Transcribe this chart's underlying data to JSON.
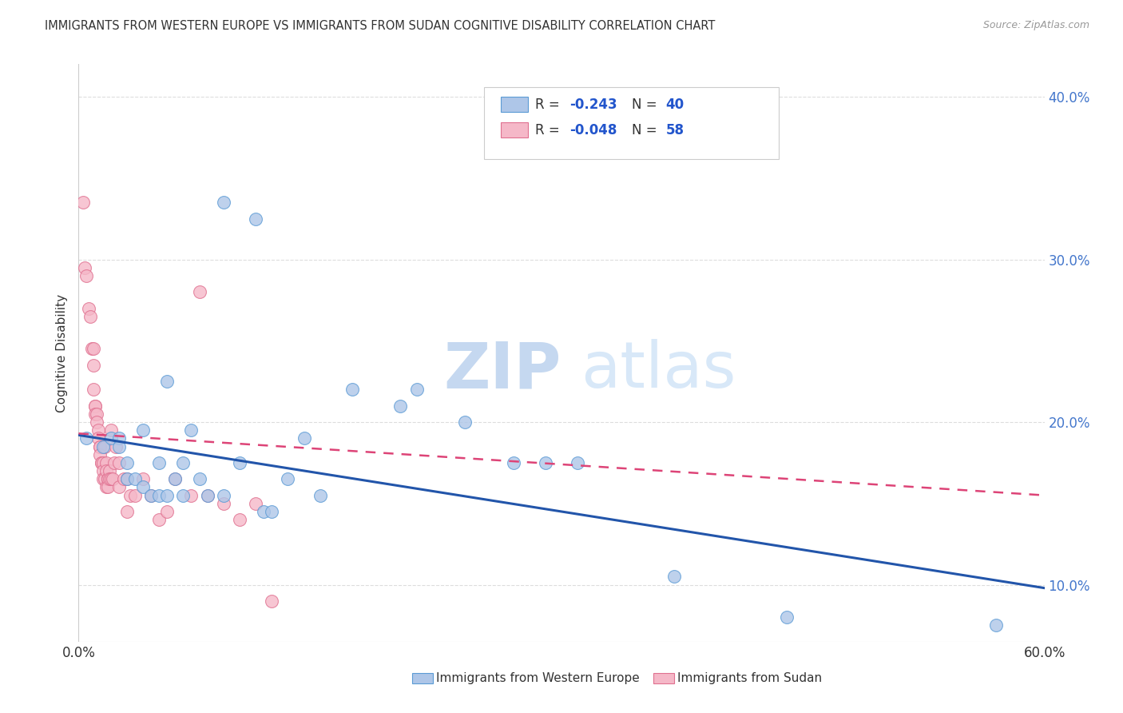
{
  "title": "IMMIGRANTS FROM WESTERN EUROPE VS IMMIGRANTS FROM SUDAN COGNITIVE DISABILITY CORRELATION CHART",
  "source": "Source: ZipAtlas.com",
  "ylabel_left": "Cognitive Disability",
  "legend_blue_r": "-0.243",
  "legend_blue_n": "40",
  "legend_pink_r": "-0.048",
  "legend_pink_n": "58",
  "legend_label_blue": "Immigrants from Western Europe",
  "legend_label_pink": "Immigrants from Sudan",
  "xlim": [
    0.0,
    0.6
  ],
  "ylim": [
    0.065,
    0.42
  ],
  "yticks": [
    0.1,
    0.2,
    0.3,
    0.4
  ],
  "ytick_labels": [
    "10.0%",
    "20.0%",
    "30.0%",
    "40.0%"
  ],
  "xticks": [
    0.0,
    0.6
  ],
  "xtick_labels": [
    "0.0%",
    "60.0%"
  ],
  "blue_color": "#aec6e8",
  "pink_color": "#f5b8c8",
  "blue_edge_color": "#5b9bd5",
  "pink_edge_color": "#e07090",
  "blue_line_color": "#2255aa",
  "pink_line_color": "#dd4477",
  "watermark_zip_color": "#c5d8f0",
  "watermark_atlas_color": "#d8e8f8",
  "background_color": "#ffffff",
  "grid_color": "#dddddd",
  "blue_x": [
    0.005,
    0.015,
    0.02,
    0.025,
    0.025,
    0.03,
    0.03,
    0.035,
    0.04,
    0.04,
    0.045,
    0.05,
    0.05,
    0.055,
    0.055,
    0.06,
    0.065,
    0.065,
    0.07,
    0.075,
    0.08,
    0.09,
    0.09,
    0.1,
    0.11,
    0.115,
    0.12,
    0.13,
    0.14,
    0.15,
    0.17,
    0.2,
    0.21,
    0.24,
    0.27,
    0.29,
    0.31,
    0.37,
    0.44,
    0.57
  ],
  "blue_y": [
    0.19,
    0.185,
    0.19,
    0.19,
    0.185,
    0.175,
    0.165,
    0.165,
    0.16,
    0.195,
    0.155,
    0.155,
    0.175,
    0.155,
    0.225,
    0.165,
    0.175,
    0.155,
    0.195,
    0.165,
    0.155,
    0.155,
    0.335,
    0.175,
    0.325,
    0.145,
    0.145,
    0.165,
    0.19,
    0.155,
    0.22,
    0.21,
    0.22,
    0.2,
    0.175,
    0.175,
    0.175,
    0.105,
    0.08,
    0.075
  ],
  "pink_x": [
    0.003,
    0.004,
    0.005,
    0.006,
    0.007,
    0.008,
    0.009,
    0.009,
    0.009,
    0.01,
    0.01,
    0.01,
    0.011,
    0.011,
    0.012,
    0.012,
    0.013,
    0.013,
    0.013,
    0.014,
    0.014,
    0.015,
    0.015,
    0.015,
    0.016,
    0.016,
    0.017,
    0.017,
    0.017,
    0.018,
    0.018,
    0.018,
    0.019,
    0.019,
    0.02,
    0.02,
    0.021,
    0.022,
    0.023,
    0.025,
    0.025,
    0.028,
    0.03,
    0.03,
    0.032,
    0.035,
    0.04,
    0.045,
    0.05,
    0.055,
    0.06,
    0.07,
    0.075,
    0.08,
    0.09,
    0.1,
    0.11,
    0.12
  ],
  "pink_y": [
    0.335,
    0.295,
    0.29,
    0.27,
    0.265,
    0.245,
    0.245,
    0.235,
    0.22,
    0.21,
    0.21,
    0.205,
    0.205,
    0.2,
    0.195,
    0.19,
    0.185,
    0.185,
    0.18,
    0.175,
    0.175,
    0.175,
    0.17,
    0.165,
    0.185,
    0.165,
    0.175,
    0.17,
    0.16,
    0.165,
    0.165,
    0.16,
    0.17,
    0.165,
    0.165,
    0.195,
    0.165,
    0.175,
    0.185,
    0.175,
    0.16,
    0.165,
    0.165,
    0.145,
    0.155,
    0.155,
    0.165,
    0.155,
    0.14,
    0.145,
    0.165,
    0.155,
    0.28,
    0.155,
    0.15,
    0.14,
    0.15,
    0.09
  ],
  "blue_trend_x0": 0.0,
  "blue_trend_y0": 0.192,
  "blue_trend_x1": 0.6,
  "blue_trend_y1": 0.098,
  "pink_trend_x0": 0.0,
  "pink_trend_y0": 0.193,
  "pink_trend_x1": 0.6,
  "pink_trend_y1": 0.155
}
